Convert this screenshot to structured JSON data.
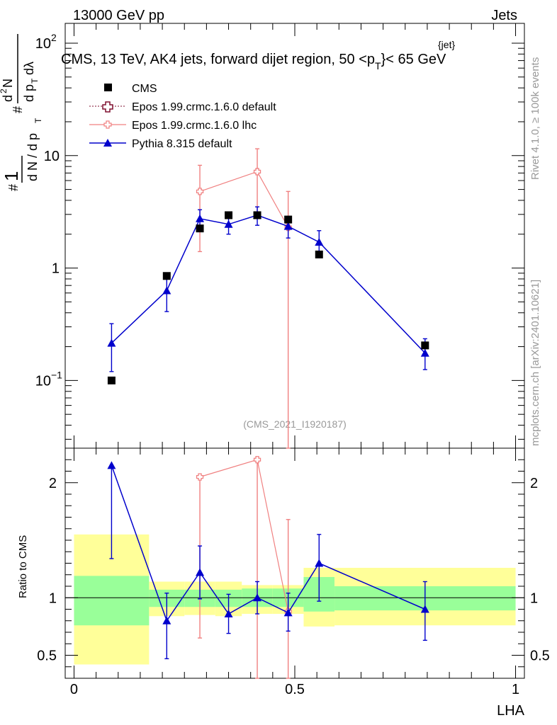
{
  "header": {
    "energy_label": "13000 GeV pp",
    "category_label": "Jets",
    "title": "CMS, 13 TeV, AK4 jets, forward dijet region, 50 <p",
    "title_sub": "T",
    "title_sup": "{jet}",
    "title_end": "}< 65 GeV",
    "watermark": "(CMS_2021_I1920187)",
    "side_rivet": "Rivet 4.1.0, ≥ 100k events",
    "side_mcplots": "mcplots.cern.ch [arXiv:2401.10621]"
  },
  "colors": {
    "cms": "#000000",
    "epos_default": "#7f0f2f",
    "epos_lhc": "#f08080",
    "pythia": "#0000cc",
    "band_inner": "#99ff99",
    "band_outer": "#ffff99"
  },
  "chart_data": [
    {
      "type": "scatter",
      "panel": "main",
      "title": "CMS, 13 TeV, AK4 jets, forward dijet region, 50 <p_T^{jet}< 65 GeV",
      "xlabel": "",
      "ylabel": "1 / (dN / dp_T) d²N / (dp_T dλ)",
      "yscale": "log",
      "ylim": [
        0.025,
        150
      ],
      "xlim": [
        -0.02,
        1.02
      ],
      "y_ticks": [
        {
          "value": 0.1,
          "base": "10",
          "exp": "−1"
        },
        {
          "value": 1,
          "label": "1"
        },
        {
          "value": 10,
          "label": "10"
        },
        {
          "value": 100,
          "base": "10",
          "exp": "2"
        }
      ],
      "series": [
        {
          "name": "CMS",
          "key": "cms",
          "points": [
            {
              "x": 0.085,
              "y": 0.1
            },
            {
              "x": 0.21,
              "y": 0.85
            },
            {
              "x": 0.285,
              "y": 2.25
            },
            {
              "x": 0.35,
              "y": 2.95
            },
            {
              "x": 0.415,
              "y": 2.95
            },
            {
              "x": 0.485,
              "y": 2.7
            },
            {
              "x": 0.555,
              "y": 1.32
            },
            {
              "x": 0.795,
              "y": 0.205
            }
          ]
        },
        {
          "name": "Epos 1.99.crmc.1.6.0 default",
          "key": "epos_default",
          "points": []
        },
        {
          "name": "Epos 1.99.crmc.1.6.0 lhc",
          "key": "epos_lhc",
          "points": [
            {
              "x": 0.285,
              "y": 4.8,
              "ylo": 1.4,
              "yhi": 8.2
            },
            {
              "x": 0.415,
              "y": 7.2,
              "ylo": 3.0,
              "yhi": 11.5
            },
            {
              "x": 0.485,
              "y": 2.3,
              "ylo": 0.01,
              "yhi": 4.8
            }
          ]
        },
        {
          "name": "Pythia 8.315 default",
          "key": "pythia",
          "points": [
            {
              "x": 0.085,
              "y": 0.215,
              "ylo": 0.12,
              "yhi": 0.32
            },
            {
              "x": 0.21,
              "y": 0.63,
              "ylo": 0.41,
              "yhi": 0.85
            },
            {
              "x": 0.285,
              "y": 2.75,
              "ylo": 2.2,
              "yhi": 3.3
            },
            {
              "x": 0.35,
              "y": 2.45,
              "ylo": 2.0,
              "yhi": 2.95
            },
            {
              "x": 0.415,
              "y": 2.95,
              "ylo": 2.4,
              "yhi": 3.5
            },
            {
              "x": 0.485,
              "y": 2.35,
              "ylo": 1.85,
              "yhi": 2.85
            },
            {
              "x": 0.555,
              "y": 1.7,
              "ylo": 1.28,
              "yhi": 2.15
            },
            {
              "x": 0.795,
              "y": 0.175,
              "ylo": 0.125,
              "yhi": 0.235
            }
          ]
        }
      ]
    },
    {
      "type": "scatter",
      "panel": "ratio",
      "xlabel": "LHA",
      "ylabel": "Ratio to CMS",
      "ylim": [
        0.3,
        2.3
      ],
      "xlim": [
        -0.02,
        1.02
      ],
      "reference_line": 1,
      "y_ticks": [
        {
          "value": 0.5,
          "label": "0.5"
        },
        {
          "value": 1,
          "label": "1"
        },
        {
          "value": 2,
          "label": "2"
        }
      ],
      "x_ticks": [
        {
          "value": 0,
          "label": "0"
        },
        {
          "value": 0.5,
          "label": "0.5"
        },
        {
          "value": 1,
          "label": "1"
        }
      ],
      "bands": [
        {
          "x0": 0.0,
          "x1": 0.17,
          "inner_lo": 0.76,
          "inner_hi": 1.19,
          "outer_lo": 0.42,
          "outer_hi": 1.55
        },
        {
          "x0": 0.17,
          "x1": 0.25,
          "inner_lo": 0.92,
          "inner_hi": 1.07,
          "outer_lo": 0.84,
          "outer_hi": 1.14
        },
        {
          "x0": 0.25,
          "x1": 0.32,
          "inner_lo": 0.92,
          "inner_hi": 1.07,
          "outer_lo": 0.85,
          "outer_hi": 1.14
        },
        {
          "x0": 0.32,
          "x1": 0.38,
          "inner_lo": 0.92,
          "inner_hi": 1.07,
          "outer_lo": 0.84,
          "outer_hi": 1.14
        },
        {
          "x0": 0.38,
          "x1": 0.45,
          "inner_lo": 0.92,
          "inner_hi": 1.08,
          "outer_lo": 0.86,
          "outer_hi": 1.11
        },
        {
          "x0": 0.45,
          "x1": 0.52,
          "inner_lo": 0.92,
          "inner_hi": 1.08,
          "outer_lo": 0.86,
          "outer_hi": 1.11
        },
        {
          "x0": 0.52,
          "x1": 0.59,
          "inner_lo": 0.88,
          "inner_hi": 1.18,
          "outer_lo": 0.75,
          "outer_hi": 1.26
        },
        {
          "x0": 0.59,
          "x1": 1.0,
          "inner_lo": 0.89,
          "inner_hi": 1.1,
          "outer_lo": 0.76,
          "outer_hi": 1.26
        }
      ],
      "series": [
        {
          "name": "Epos 1.99.crmc.1.6.0 lhc",
          "key": "epos_lhc",
          "points": [
            {
              "x": 0.285,
              "y": 2.05,
              "ylo": 0.65,
              "yhi": 2.05
            },
            {
              "x": 0.415,
              "y": 2.2,
              "ylo": 0.3,
              "yhi": 2.2
            },
            {
              "x": 0.485,
              "y": 0.88,
              "ylo": 0.3,
              "yhi": 1.68
            }
          ]
        },
        {
          "name": "Pythia 8.315 default",
          "key": "pythia",
          "points": [
            {
              "x": 0.085,
              "y": 2.15,
              "ylo": 1.34,
              "yhi": 2.15
            },
            {
              "x": 0.21,
              "y": 0.8,
              "ylo": 0.47,
              "yhi": 1.04
            },
            {
              "x": 0.285,
              "y": 1.22,
              "ylo": 0.99,
              "yhi": 1.45
            },
            {
              "x": 0.35,
              "y": 0.86,
              "ylo": 0.69,
              "yhi": 1.03
            },
            {
              "x": 0.415,
              "y": 1.0,
              "ylo": 0.86,
              "yhi": 1.14
            },
            {
              "x": 0.485,
              "y": 0.87,
              "ylo": 0.71,
              "yhi": 1.04
            },
            {
              "x": 0.555,
              "y": 1.3,
              "ylo": 0.97,
              "yhi": 1.55
            },
            {
              "x": 0.795,
              "y": 0.9,
              "ylo": 0.63,
              "yhi": 1.14
            }
          ]
        }
      ]
    }
  ]
}
